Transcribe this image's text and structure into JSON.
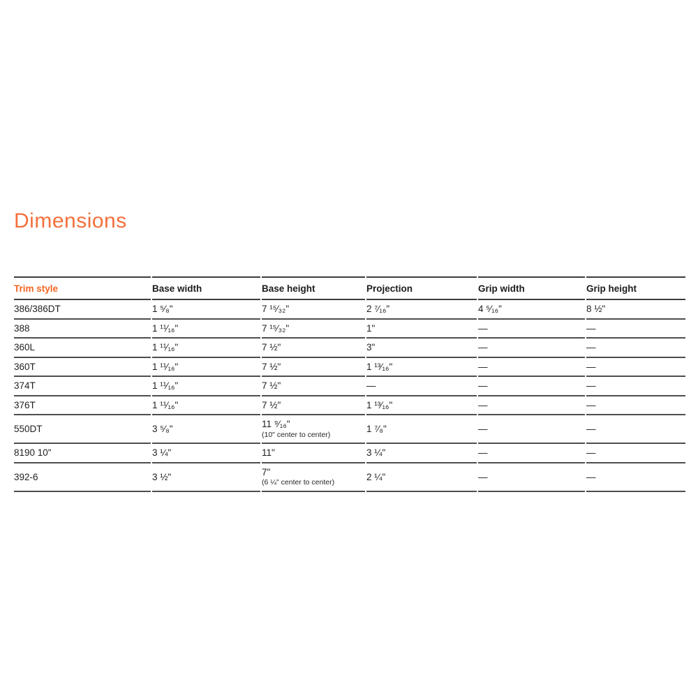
{
  "title": "Dimensions",
  "colors": {
    "title_orange": "#F4703C",
    "accent_orange": "#F26522",
    "rule_gray": "#4E4E4E",
    "text_dark": "#1F1F1F"
  },
  "table": {
    "headers": [
      "Trim style",
      "Base width",
      "Base height",
      "Projection",
      "Grip width",
      "Grip height"
    ],
    "rows": [
      {
        "cells": [
          {
            "text": "386/386DT"
          },
          {
            "text": "1 ⁵⁄₈\""
          },
          {
            "text": "7 ¹⁵⁄₃₂\""
          },
          {
            "text": "2 ⁷⁄₁₆\""
          },
          {
            "text": "4 ⁵⁄₁₆\""
          },
          {
            "text": "8 ½\""
          }
        ]
      },
      {
        "cells": [
          {
            "text": "388"
          },
          {
            "text": "1 ¹¹⁄₁₆\""
          },
          {
            "text": "7 ¹⁵⁄₃₂\""
          },
          {
            "text": "1\""
          },
          {
            "text": "—"
          },
          {
            "text": "—"
          }
        ]
      },
      {
        "cells": [
          {
            "text": "360L"
          },
          {
            "text": "1 ¹¹⁄₁₆\""
          },
          {
            "text": "7 ½\""
          },
          {
            "text": "3\""
          },
          {
            "text": "—"
          },
          {
            "text": "—"
          }
        ]
      },
      {
        "cells": [
          {
            "text": "360T"
          },
          {
            "text": "1 ¹¹⁄₁₆\""
          },
          {
            "text": "7 ½\""
          },
          {
            "text": "1 ¹³⁄₁₆\""
          },
          {
            "text": "—"
          },
          {
            "text": "—"
          }
        ]
      },
      {
        "cells": [
          {
            "text": "374T"
          },
          {
            "text": "1 ¹¹⁄₁₆\""
          },
          {
            "text": "7 ½\""
          },
          {
            "text": "—"
          },
          {
            "text": "—"
          },
          {
            "text": "—"
          }
        ]
      },
      {
        "cells": [
          {
            "text": "376T"
          },
          {
            "text": "1 ¹¹⁄₁₆\""
          },
          {
            "text": "7 ½\""
          },
          {
            "text": "1 ¹³⁄₁₆\""
          },
          {
            "text": "—"
          },
          {
            "text": "—"
          }
        ]
      },
      {
        "cells": [
          {
            "text": "550DT"
          },
          {
            "text": "3 ⁵⁄₈\""
          },
          {
            "text": "11 ⁹⁄₁₆\"",
            "note": "(10\" center to center)"
          },
          {
            "text": "1 ⁷⁄₈\""
          },
          {
            "text": "—"
          },
          {
            "text": "—"
          }
        ]
      },
      {
        "cells": [
          {
            "text": "8190 10\""
          },
          {
            "text": "3 ¼\""
          },
          {
            "text": "11\""
          },
          {
            "text": "3 ¼\""
          },
          {
            "text": "—"
          },
          {
            "text": "—"
          }
        ]
      },
      {
        "cells": [
          {
            "text": "392-6"
          },
          {
            "text": "3 ½\""
          },
          {
            "text": "7\"",
            "note": "(6 ¼\" center to center)"
          },
          {
            "text": "2 ¼\""
          },
          {
            "text": "—"
          },
          {
            "text": "—"
          }
        ]
      }
    ]
  }
}
